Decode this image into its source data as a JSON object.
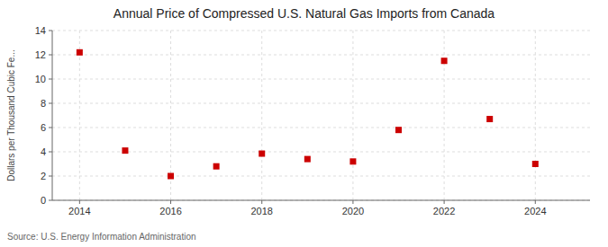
{
  "chart_data": {
    "type": "scatter",
    "title": "Annual Price of Compressed U.S. Natural Gas Imports from Canada",
    "ylabel": "Dollars per Thousand Cubic Fe...",
    "source": "Source: U.S. Energy Information Administration",
    "x": [
      2014,
      2015,
      2016,
      2017,
      2018,
      2019,
      2020,
      2021,
      2022,
      2023,
      2024
    ],
    "values": [
      12.2,
      4.1,
      2.0,
      2.8,
      3.85,
      3.4,
      3.2,
      5.8,
      11.5,
      6.7,
      3.0
    ],
    "xlim": [
      2013.4,
      2025.2
    ],
    "xticks": [
      2014,
      2016,
      2018,
      2020,
      2022,
      2024
    ],
    "ylim": [
      0,
      14
    ],
    "yticks": [
      0,
      2,
      4,
      6,
      8,
      10,
      12,
      14
    ],
    "color": "#cc0000",
    "marker": "square",
    "grid": true
  }
}
